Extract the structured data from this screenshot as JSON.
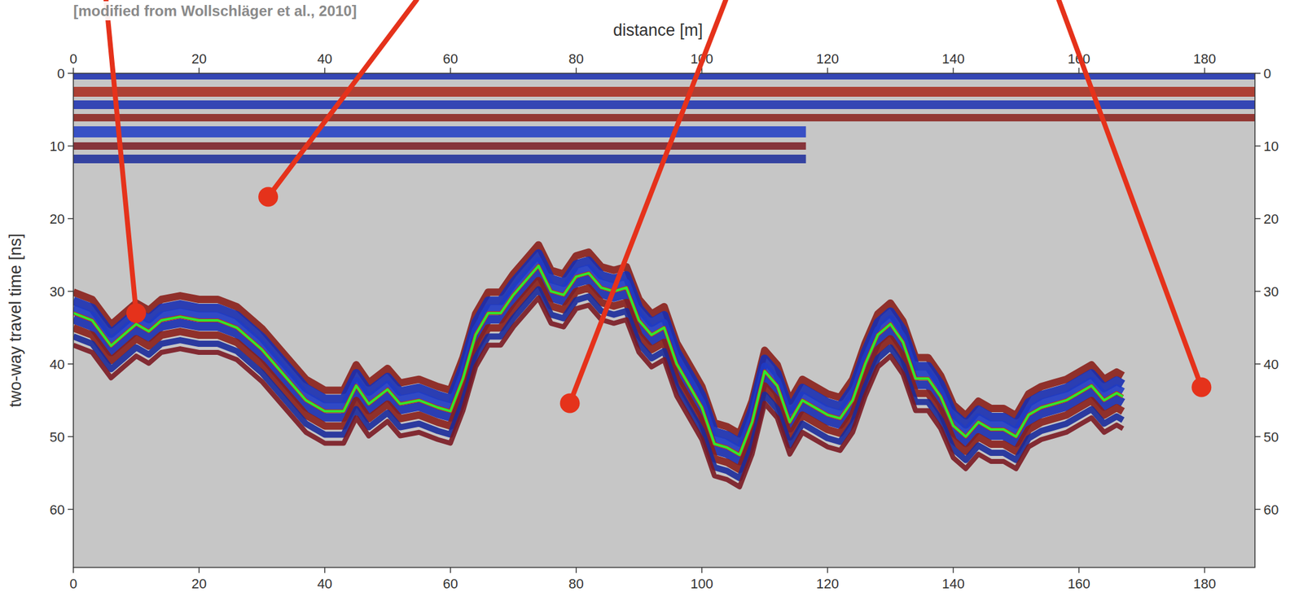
{
  "chart_data": {
    "type": "line",
    "note": "[modified from Wollschläger et al., 2010]",
    "x_label": "distance [m]",
    "y_label": "two-way travel time [ns]",
    "color": "#2ee82e",
    "x": [
      0,
      3,
      6,
      8,
      10,
      12,
      14,
      17,
      20,
      23,
      26,
      30,
      34,
      37,
      40,
      43,
      45,
      47,
      50,
      52,
      55,
      58,
      60,
      62,
      64,
      66,
      68,
      70,
      72,
      74,
      76,
      78,
      80,
      82,
      84,
      86,
      88,
      90,
      92,
      94,
      96,
      98,
      100,
      102,
      104,
      106,
      108,
      110,
      112,
      114,
      116,
      118,
      120,
      122,
      124,
      126,
      128,
      130,
      132,
      134,
      136,
      138,
      140,
      142,
      144,
      146,
      148,
      150,
      152,
      154,
      156,
      158,
      160,
      162,
      164,
      166,
      167
    ],
    "values": [
      33,
      34,
      37.5,
      36,
      34.5,
      35.5,
      34,
      33.5,
      34,
      34,
      35,
      38,
      42,
      45,
      46.5,
      46.5,
      43,
      45.5,
      43.5,
      45.5,
      45,
      46,
      46.5,
      42,
      36,
      33,
      33,
      30.5,
      28.5,
      26.5,
      30,
      30.5,
      28,
      27.5,
      29.5,
      30,
      29.5,
      34,
      36,
      35,
      40,
      43,
      46,
      51,
      51.5,
      52.5,
      48,
      41,
      43,
      48,
      45,
      46,
      47,
      47.5,
      45,
      40,
      36,
      34.5,
      37,
      42,
      42,
      44.5,
      48.5,
      50,
      48,
      49,
      49,
      50,
      47,
      46,
      45.5,
      45,
      44,
      43,
      45,
      44,
      44.5
    ],
    "xlim": [
      0,
      188
    ],
    "ylim": [
      68,
      0
    ],
    "xticks": [
      0,
      20,
      40,
      60,
      80,
      100,
      120,
      140,
      160,
      180
    ],
    "yticks": [
      0,
      10,
      20,
      30,
      40,
      50,
      60
    ],
    "annotations": [
      {
        "x": 10,
        "y": 33,
        "x_from": 5.2
      },
      {
        "x": 31,
        "y": 17,
        "x_from": 54.6
      },
      {
        "x": 79,
        "y": 45.4,
        "x_from": 103.8
      },
      {
        "x": 179.5,
        "y": 43.2,
        "x_from": 156.8
      }
    ]
  }
}
